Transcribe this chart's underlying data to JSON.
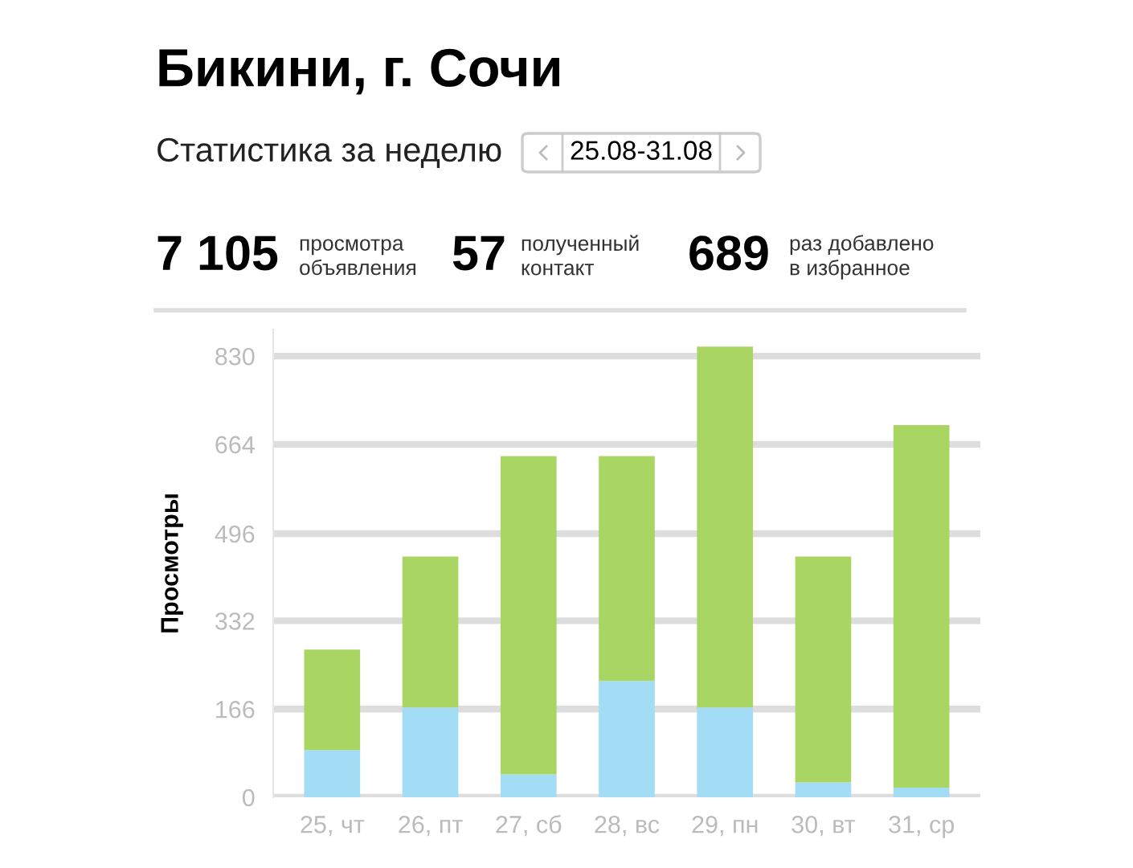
{
  "chart_data": {
    "type": "bar",
    "title": "Бикини, г. Сочи",
    "subtitle": "Статистика за неделю",
    "ylabel": "Просмотры",
    "annotations": [
      "25.08-31.08",
      "7 105",
      "просмотра\nобъявления",
      "57",
      "полученный\nконтакт",
      "689",
      "раз добавлено\nв избранное"
    ],
    "categories": [
      "25, чт",
      "26, пт",
      "27, сб",
      "28, вс",
      "29, пн",
      "30, вт",
      "31, ср"
    ],
    "stacked": true,
    "series": [
      {
        "color": "#a3dcf5",
        "values": [
          89,
          169,
          43,
          219,
          169,
          28,
          18
        ]
      },
      {
        "color": "#a9d563",
        "values": [
          189,
          284,
          599,
          423,
          679,
          425,
          682
        ]
      }
    ],
    "ylim": [
      0,
      880
    ],
    "yticks": [
      0,
      166,
      332,
      496,
      664,
      830
    ],
    "grid": "y",
    "legend": false
  }
}
